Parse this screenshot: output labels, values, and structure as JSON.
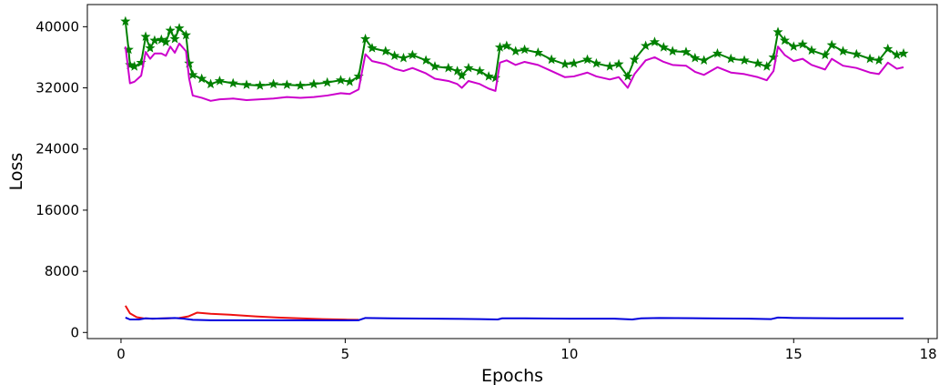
{
  "chart_data": {
    "type": "line",
    "xlabel": "Epochs",
    "ylabel": "Loss",
    "xlim": [
      -0.75,
      18.2
    ],
    "ylim": [
      -800,
      42900
    ],
    "xticks": [
      0,
      5,
      10,
      15,
      18
    ],
    "xtick_labels": [
      "0",
      "5",
      "10",
      "15",
      "18"
    ],
    "yticks": [
      0,
      8000,
      16000,
      24000,
      32000,
      40000
    ],
    "ytick_labels": [
      "0",
      "8000",
      "16000",
      "24000",
      "32000",
      "40000"
    ],
    "grid": false,
    "legend": "none",
    "series": [
      {
        "color": "#008000",
        "marker": "star",
        "points": [
          [
            0.1,
            40700
          ],
          [
            0.17,
            37000
          ],
          [
            0.2,
            35000
          ],
          [
            0.3,
            34800
          ],
          [
            0.45,
            35300
          ],
          [
            0.55,
            38700
          ],
          [
            0.65,
            37200
          ],
          [
            0.75,
            38200
          ],
          [
            0.9,
            38300
          ],
          [
            1.0,
            38000
          ],
          [
            1.1,
            39500
          ],
          [
            1.2,
            38400
          ],
          [
            1.3,
            39800
          ],
          [
            1.45,
            38900
          ],
          [
            1.52,
            35200
          ],
          [
            1.6,
            33700
          ],
          [
            1.8,
            33200
          ],
          [
            2.0,
            32500
          ],
          [
            2.2,
            32900
          ],
          [
            2.5,
            32600
          ],
          [
            2.8,
            32400
          ],
          [
            3.1,
            32300
          ],
          [
            3.4,
            32500
          ],
          [
            3.7,
            32400
          ],
          [
            4.0,
            32300
          ],
          [
            4.3,
            32500
          ],
          [
            4.6,
            32700
          ],
          [
            4.9,
            33000
          ],
          [
            5.1,
            32800
          ],
          [
            5.3,
            33500
          ],
          [
            5.45,
            38400
          ],
          [
            5.6,
            37200
          ],
          [
            5.9,
            36800
          ],
          [
            6.1,
            36200
          ],
          [
            6.3,
            35900
          ],
          [
            6.5,
            36300
          ],
          [
            6.8,
            35600
          ],
          [
            7.0,
            34800
          ],
          [
            7.3,
            34600
          ],
          [
            7.5,
            34200
          ],
          [
            7.6,
            33600
          ],
          [
            7.75,
            34600
          ],
          [
            8.0,
            34200
          ],
          [
            8.2,
            33500
          ],
          [
            8.35,
            33300
          ],
          [
            8.45,
            37300
          ],
          [
            8.6,
            37500
          ],
          [
            8.8,
            36800
          ],
          [
            9.0,
            37000
          ],
          [
            9.3,
            36600
          ],
          [
            9.6,
            35700
          ],
          [
            9.9,
            35100
          ],
          [
            10.1,
            35200
          ],
          [
            10.4,
            35700
          ],
          [
            10.6,
            35200
          ],
          [
            10.9,
            34800
          ],
          [
            11.1,
            35100
          ],
          [
            11.3,
            33500
          ],
          [
            11.45,
            35700
          ],
          [
            11.7,
            37500
          ],
          [
            11.9,
            38000
          ],
          [
            12.1,
            37300
          ],
          [
            12.3,
            36800
          ],
          [
            12.6,
            36700
          ],
          [
            12.8,
            35900
          ],
          [
            13.0,
            35600
          ],
          [
            13.3,
            36500
          ],
          [
            13.6,
            35800
          ],
          [
            13.9,
            35600
          ],
          [
            14.2,
            35200
          ],
          [
            14.4,
            34800
          ],
          [
            14.55,
            36000
          ],
          [
            14.65,
            39300
          ],
          [
            14.8,
            38200
          ],
          [
            15.0,
            37400
          ],
          [
            15.2,
            37700
          ],
          [
            15.4,
            36900
          ],
          [
            15.7,
            36300
          ],
          [
            15.85,
            37600
          ],
          [
            16.1,
            36800
          ],
          [
            16.4,
            36400
          ],
          [
            16.7,
            35800
          ],
          [
            16.9,
            35600
          ],
          [
            17.1,
            37100
          ],
          [
            17.3,
            36300
          ],
          [
            17.45,
            36500
          ]
        ]
      },
      {
        "color": "#cc00cc",
        "marker": "none",
        "points": [
          [
            0.1,
            37400
          ],
          [
            0.2,
            32600
          ],
          [
            0.3,
            32800
          ],
          [
            0.45,
            33600
          ],
          [
            0.55,
            36700
          ],
          [
            0.65,
            35800
          ],
          [
            0.75,
            36500
          ],
          [
            0.9,
            36500
          ],
          [
            1.0,
            36200
          ],
          [
            1.1,
            37400
          ],
          [
            1.2,
            36600
          ],
          [
            1.3,
            37800
          ],
          [
            1.45,
            36800
          ],
          [
            1.52,
            33200
          ],
          [
            1.6,
            31000
          ],
          [
            1.8,
            30700
          ],
          [
            2.0,
            30300
          ],
          [
            2.2,
            30500
          ],
          [
            2.5,
            30600
          ],
          [
            2.8,
            30400
          ],
          [
            3.1,
            30500
          ],
          [
            3.4,
            30600
          ],
          [
            3.7,
            30800
          ],
          [
            4.0,
            30700
          ],
          [
            4.3,
            30800
          ],
          [
            4.6,
            31000
          ],
          [
            4.9,
            31300
          ],
          [
            5.1,
            31200
          ],
          [
            5.3,
            31800
          ],
          [
            5.45,
            36400
          ],
          [
            5.6,
            35500
          ],
          [
            5.9,
            35100
          ],
          [
            6.1,
            34500
          ],
          [
            6.3,
            34200
          ],
          [
            6.5,
            34600
          ],
          [
            6.8,
            33900
          ],
          [
            7.0,
            33200
          ],
          [
            7.3,
            32900
          ],
          [
            7.5,
            32500
          ],
          [
            7.6,
            32000
          ],
          [
            7.75,
            32900
          ],
          [
            8.0,
            32500
          ],
          [
            8.2,
            31900
          ],
          [
            8.35,
            31600
          ],
          [
            8.45,
            35300
          ],
          [
            8.6,
            35600
          ],
          [
            8.8,
            35000
          ],
          [
            9.0,
            35400
          ],
          [
            9.3,
            35000
          ],
          [
            9.6,
            34200
          ],
          [
            9.9,
            33400
          ],
          [
            10.1,
            33500
          ],
          [
            10.4,
            34000
          ],
          [
            10.6,
            33500
          ],
          [
            10.9,
            33100
          ],
          [
            11.1,
            33400
          ],
          [
            11.3,
            32000
          ],
          [
            11.45,
            33800
          ],
          [
            11.7,
            35600
          ],
          [
            11.9,
            36000
          ],
          [
            12.1,
            35400
          ],
          [
            12.3,
            35000
          ],
          [
            12.6,
            34900
          ],
          [
            12.8,
            34100
          ],
          [
            13.0,
            33700
          ],
          [
            13.3,
            34700
          ],
          [
            13.6,
            34000
          ],
          [
            13.9,
            33800
          ],
          [
            14.2,
            33400
          ],
          [
            14.4,
            33000
          ],
          [
            14.55,
            34200
          ],
          [
            14.65,
            37400
          ],
          [
            14.8,
            36300
          ],
          [
            15.0,
            35500
          ],
          [
            15.2,
            35800
          ],
          [
            15.4,
            35000
          ],
          [
            15.7,
            34400
          ],
          [
            15.85,
            35800
          ],
          [
            16.1,
            34900
          ],
          [
            16.4,
            34600
          ],
          [
            16.7,
            34000
          ],
          [
            16.9,
            33800
          ],
          [
            17.1,
            35300
          ],
          [
            17.3,
            34500
          ],
          [
            17.45,
            34700
          ]
        ]
      },
      {
        "color": "#ee1111",
        "marker": "none",
        "points": [
          [
            0.1,
            3500
          ],
          [
            0.2,
            2500
          ],
          [
            0.35,
            2000
          ],
          [
            0.5,
            1850
          ],
          [
            0.7,
            1800
          ],
          [
            1.0,
            1850
          ],
          [
            1.3,
            1900
          ],
          [
            1.5,
            2100
          ],
          [
            1.7,
            2600
          ],
          [
            2.0,
            2450
          ],
          [
            2.5,
            2300
          ],
          [
            3.0,
            2100
          ],
          [
            3.5,
            1950
          ],
          [
            4.0,
            1850
          ],
          [
            4.5,
            1750
          ],
          [
            5.0,
            1680
          ],
          [
            5.3,
            1650
          ]
        ]
      },
      {
        "color": "#0000dd",
        "marker": "none",
        "points": [
          [
            0.1,
            1950
          ],
          [
            0.2,
            1700
          ],
          [
            0.4,
            1700
          ],
          [
            0.55,
            1850
          ],
          [
            0.7,
            1800
          ],
          [
            1.0,
            1850
          ],
          [
            1.2,
            1900
          ],
          [
            1.4,
            1800
          ],
          [
            1.6,
            1650
          ],
          [
            2.0,
            1600
          ],
          [
            3.0,
            1600
          ],
          [
            4.0,
            1600
          ],
          [
            5.0,
            1580
          ],
          [
            5.3,
            1600
          ],
          [
            5.45,
            1900
          ],
          [
            6.0,
            1850
          ],
          [
            7.0,
            1800
          ],
          [
            8.0,
            1750
          ],
          [
            8.4,
            1700
          ],
          [
            8.5,
            1850
          ],
          [
            9.0,
            1850
          ],
          [
            10.0,
            1800
          ],
          [
            11.0,
            1800
          ],
          [
            11.4,
            1700
          ],
          [
            11.6,
            1850
          ],
          [
            12.0,
            1900
          ],
          [
            13.0,
            1850
          ],
          [
            14.0,
            1800
          ],
          [
            14.5,
            1750
          ],
          [
            14.65,
            1950
          ],
          [
            15.0,
            1900
          ],
          [
            16.0,
            1850
          ],
          [
            17.0,
            1850
          ],
          [
            17.45,
            1850
          ]
        ]
      }
    ]
  }
}
